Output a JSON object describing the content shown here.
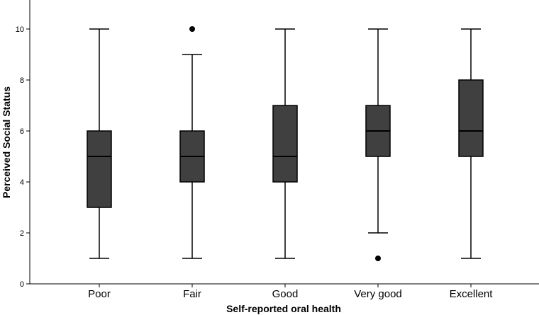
{
  "chart_data": {
    "type": "box",
    "title": "",
    "xlabel": "Self-reported oral health",
    "ylabel": "Perceived Social Status",
    "ylim": [
      0,
      11
    ],
    "yticks": [
      0,
      2,
      4,
      6,
      8,
      10
    ],
    "grid": false,
    "legend": "none",
    "box_color": "#404040",
    "categories": [
      "Poor",
      "Fair",
      "Good",
      "Very good",
      "Excellent"
    ],
    "boxes": [
      {
        "category": "Poor",
        "whisker_low": 1,
        "q1": 3,
        "median": 5,
        "q3": 6,
        "whisker_high": 10,
        "outliers": []
      },
      {
        "category": "Fair",
        "whisker_low": 1,
        "q1": 4,
        "median": 5,
        "q3": 6,
        "whisker_high": 9,
        "outliers": [
          10
        ]
      },
      {
        "category": "Good",
        "whisker_low": 1,
        "q1": 4,
        "median": 5,
        "q3": 7,
        "whisker_high": 10,
        "outliers": []
      },
      {
        "category": "Very good",
        "whisker_low": 2,
        "q1": 5,
        "median": 6,
        "q3": 7,
        "whisker_high": 10,
        "outliers": [
          1
        ]
      },
      {
        "category": "Excellent",
        "whisker_low": 1,
        "q1": 5,
        "median": 6,
        "q3": 8,
        "whisker_high": 10,
        "outliers": []
      }
    ]
  }
}
